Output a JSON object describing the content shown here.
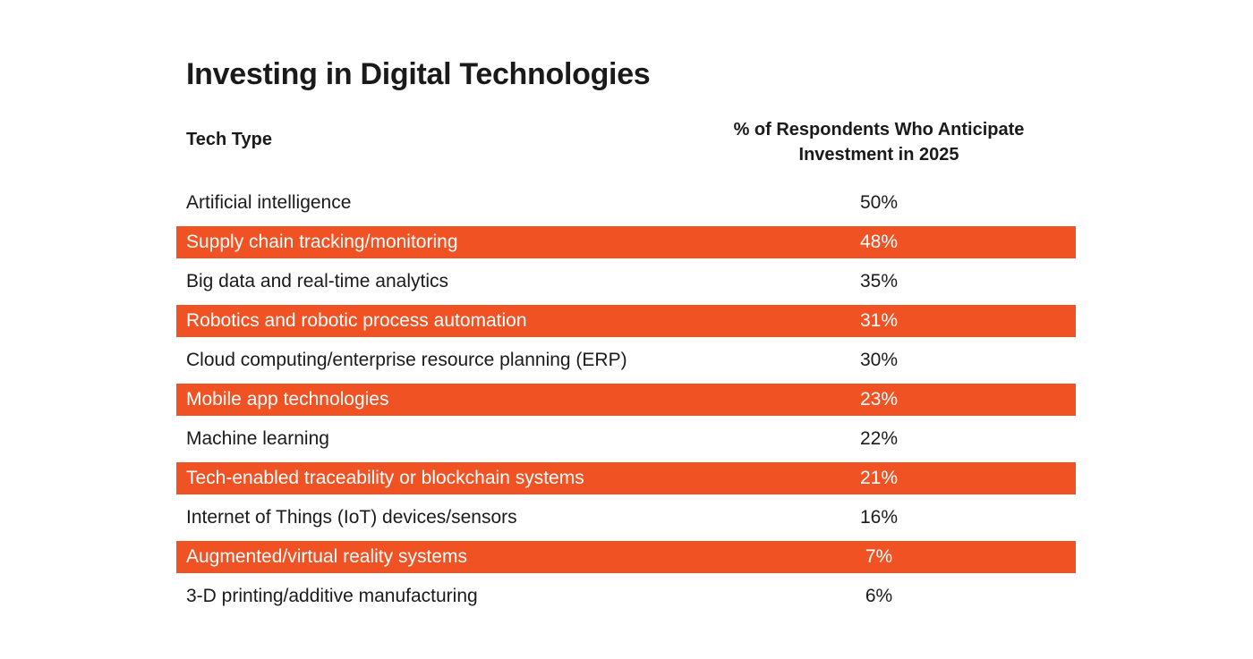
{
  "chart_data": {
    "type": "table",
    "title": "Investing in Digital Technologies",
    "columns": [
      "Tech Type",
      "% of Respondents Who Anticipate Investment in 2025"
    ],
    "column_header_lines": [
      "% of Respondents Who Anticipate",
      "Investment in 2025"
    ],
    "highlight_color": "#F05223",
    "rows": [
      {
        "label": "Artificial intelligence",
        "value": 50,
        "display": "50%",
        "highlighted": false
      },
      {
        "label": "Supply chain tracking/monitoring",
        "value": 48,
        "display": "48%",
        "highlighted": true
      },
      {
        "label": "Big data and real-time analytics",
        "value": 35,
        "display": "35%",
        "highlighted": false
      },
      {
        "label": "Robotics and robotic process automation",
        "value": 31,
        "display": "31%",
        "highlighted": true
      },
      {
        "label": "Cloud computing/enterprise resource planning (ERP)",
        "value": 30,
        "display": "30%",
        "highlighted": false
      },
      {
        "label": "Mobile app technologies",
        "value": 23,
        "display": "23%",
        "highlighted": true
      },
      {
        "label": "Machine learning",
        "value": 22,
        "display": "22%",
        "highlighted": false
      },
      {
        "label": "Tech-enabled traceability or blockchain systems",
        "value": 21,
        "display": "21%",
        "highlighted": true
      },
      {
        "label": "Internet of Things (IoT) devices/sensors",
        "value": 16,
        "display": "16%",
        "highlighted": false
      },
      {
        "label": "Augmented/virtual reality systems",
        "value": 7,
        "display": "7%",
        "highlighted": true
      },
      {
        "label": "3-D printing/additive manufacturing",
        "value": 6,
        "display": "6%",
        "highlighted": false
      }
    ]
  }
}
